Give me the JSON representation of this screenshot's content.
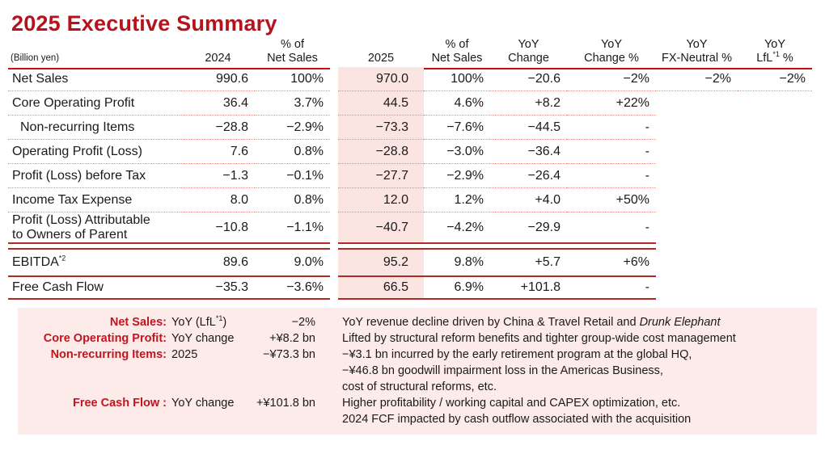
{
  "title": "2025 Executive Summary",
  "unit_label": "(Billion yen)",
  "colors": {
    "title_red": "#b5121b",
    "header_underline_red": "#c90c0f",
    "section_line_red": "#b02a22",
    "dotted_separator_red": "#dd958e",
    "pink_column_highlight": "#fbe5e2",
    "notes_panel_bg": "#fcebe9",
    "notes_label_red": "#c11520"
  },
  "table": {
    "headers": {
      "col_2024": "2024",
      "pct_net_sales": "% of\nNet Sales",
      "col_2025": "2025",
      "yoy_change": "YoY\nChange",
      "yoy_change_pct": "YoY\nChange %",
      "yoy_fx_neutral": "YoY\nFX-Neutral %",
      "lfl_line1": "YoY",
      "lfl_base": "LfL",
      "lfl_sup": "*1",
      "lfl_pct": " %"
    },
    "rows": [
      {
        "label": "Net Sales",
        "v2024": "990.6",
        "p2024": "100%",
        "v2025": "970.0",
        "p2025": "100%",
        "yoy": "−20.6",
        "yoyp": "−2%",
        "fx": "−2%",
        "lfl": "−2%"
      },
      {
        "label": "Core Operating Profit",
        "v2024": "36.4",
        "p2024": "3.7%",
        "v2025": "44.5",
        "p2025": "4.6%",
        "yoy": "+8.2",
        "yoyp": "+22%",
        "fx": "",
        "lfl": ""
      },
      {
        "label": "Non-recurring Items",
        "v2024": "−28.8",
        "p2024": "−2.9%",
        "v2025": "−73.3",
        "p2025": "−7.6%",
        "yoy": "−44.5",
        "yoyp": "-",
        "fx": "",
        "lfl": ""
      },
      {
        "label": "Operating Profit (Loss)",
        "v2024": "7.6",
        "p2024": "0.8%",
        "v2025": "−28.8",
        "p2025": "−3.0%",
        "yoy": "−36.4",
        "yoyp": "-",
        "fx": "",
        "lfl": ""
      },
      {
        "label": "Profit (Loss) before Tax",
        "v2024": "−1.3",
        "p2024": "−0.1%",
        "v2025": "−27.7",
        "p2025": "−2.9%",
        "yoy": "−26.4",
        "yoyp": "-",
        "fx": "",
        "lfl": ""
      },
      {
        "label": "Income Tax Expense",
        "v2024": "8.0",
        "p2024": "0.8%",
        "v2025": "12.0",
        "p2025": "1.2%",
        "yoy": "+4.0",
        "yoyp": "+50%",
        "fx": "",
        "lfl": ""
      },
      {
        "label": "Profit (Loss) Attributable\nto Owners of Parent",
        "v2024": "−10.8",
        "p2024": "−1.1%",
        "v2025": "−40.7",
        "p2025": "−4.2%",
        "yoy": "−29.9",
        "yoyp": "-",
        "fx": "",
        "lfl": ""
      },
      {
        "label": "EBITDA",
        "label_sup": "*2",
        "v2024": "89.6",
        "p2024": "9.0%",
        "v2025": "95.2",
        "p2025": "9.8%",
        "yoy": "+5.7",
        "yoyp": "+6%",
        "fx": "",
        "lfl": ""
      },
      {
        "label": "Free Cash Flow",
        "v2024": "−35.3",
        "p2024": "−3.6%",
        "v2025": "66.5",
        "p2025": "6.9%",
        "yoy": "+101.8",
        "yoyp": "-",
        "fx": "",
        "lfl": ""
      }
    ]
  },
  "notes": {
    "rows": [
      {
        "label": "Net Sales:",
        "metric": "YoY (LfL",
        "metric_sup": "*1",
        "metric_close": ")",
        "value": "−2%",
        "desc": "YoY revenue decline driven by China & Travel Retail and ",
        "desc_italic": "Drunk Elephant"
      },
      {
        "label": "Core Operating Profit:",
        "metric": "YoY change",
        "value": "+¥8.2 bn",
        "desc": "Lifted by structural reform benefits and tighter group-wide cost management"
      },
      {
        "label": "Non-recurring Items:",
        "metric": "2025",
        "value": "−¥73.3 bn",
        "desc": "−¥3.1 bn incurred by the early retirement program at the global HQ,"
      },
      {
        "desc": "−¥46.8 bn goodwill impairment loss in the Americas Business,"
      },
      {
        "desc": "cost of structural reforms, etc."
      },
      {
        "label": "Free Cash Flow :",
        "metric": "YoY change",
        "value": "+¥101.8 bn",
        "desc": "Higher profitability / working capital and CAPEX optimization, etc."
      },
      {
        "desc": "2024 FCF impacted by cash outflow associated with the acquisition"
      }
    ]
  }
}
